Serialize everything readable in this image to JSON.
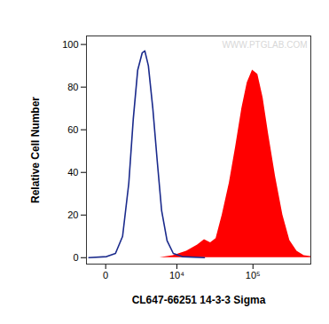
{
  "chart_data": {
    "type": "area",
    "xlabel": "CL647-66251 14-3-3 Sigma",
    "ylabel": "Relative Cell Number",
    "annotations": [
      {
        "text": "WWW.PTGLAB.COM"
      }
    ],
    "xlim": [
      -1100,
      530000
    ],
    "xticks": [
      0,
      {
        "value": 10000,
        "label": "10⁴"
      },
      {
        "value": 100000,
        "label": "10⁵"
      }
    ],
    "ylim": [
      -3,
      104
    ],
    "yticks": [
      0,
      20,
      40,
      60,
      80,
      100
    ],
    "log": "x",
    "grid": false,
    "series": [
      {
        "type": "area",
        "color": "#ff0000",
        "x": [
          5590,
          8880,
          13700,
          19300,
          23800,
          28700,
          33800,
          40600,
          50100,
          60300,
          72300,
          84600,
          98600,
          115000,
          134000,
          157000,
          192000,
          237000,
          290000,
          356000,
          438000,
          530000
        ],
        "values": [
          0,
          1,
          3,
          6,
          8.5,
          7,
          9,
          20,
          35,
          52,
          70,
          82,
          88,
          86,
          75,
          58,
          38,
          20,
          8,
          3,
          1,
          0.5
        ]
      },
      {
        "type": "line",
        "color": "#1a2a8c",
        "x": [
          -930,
          38,
          485,
          933,
          1408,
          1803,
          2250,
          2760,
          3100,
          3590,
          4280,
          5070,
          5940,
          7190,
          8880,
          11900,
          23800
        ],
        "values": [
          0,
          0.5,
          2,
          10,
          35,
          65,
          88,
          96,
          97,
          90,
          70,
          45,
          22,
          8,
          2,
          0.5,
          0
        ]
      }
    ]
  }
}
